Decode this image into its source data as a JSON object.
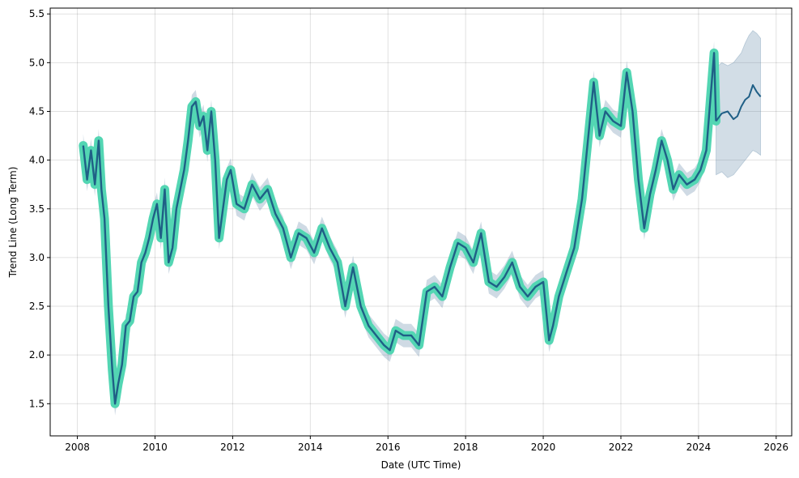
{
  "chart_data": {
    "type": "line",
    "title": "",
    "xlabel": "Date (UTC Time)",
    "ylabel": "Trend Line (Long Term)",
    "xlim": [
      2007.3,
      2026.4
    ],
    "ylim": [
      1.17,
      5.56
    ],
    "x_ticks": [
      2008,
      2010,
      2012,
      2014,
      2016,
      2018,
      2020,
      2022,
      2024,
      2026
    ],
    "y_ticks": [
      1.5,
      2.0,
      2.5,
      3.0,
      3.5,
      4.0,
      4.5,
      5.0,
      5.5
    ],
    "grid": true,
    "colors": {
      "line": "#1f5f86",
      "highlight": "#53d6b3",
      "band": "#5f86a6"
    },
    "series": [
      {
        "role": "trend",
        "x": [
          2008.15,
          2008.25,
          2008.35,
          2008.45,
          2008.55,
          2008.62,
          2008.7,
          2008.8,
          2008.9,
          2008.97,
          2009.05,
          2009.15,
          2009.25,
          2009.35,
          2009.45,
          2009.55,
          2009.65,
          2009.75,
          2009.85,
          2009.95,
          2010.05,
          2010.15,
          2010.25,
          2010.35,
          2010.45,
          2010.55,
          2010.65,
          2010.75,
          2010.85,
          2010.95,
          2011.05,
          2011.15,
          2011.25,
          2011.35,
          2011.45,
          2011.55,
          2011.65,
          2011.75,
          2011.85,
          2011.95,
          2012.1,
          2012.3,
          2012.5,
          2012.7,
          2012.9,
          2013.1,
          2013.3,
          2013.5,
          2013.7,
          2013.9,
          2014.1,
          2014.3,
          2014.5,
          2014.7,
          2014.9,
          2015.1,
          2015.3,
          2015.5,
          2015.7,
          2015.9,
          2016.05,
          2016.2,
          2016.4,
          2016.6,
          2016.8,
          2017.0,
          2017.2,
          2017.4,
          2017.6,
          2017.8,
          2018.0,
          2018.2,
          2018.4,
          2018.6,
          2018.8,
          2019.0,
          2019.2,
          2019.4,
          2019.6,
          2019.8,
          2020.0,
          2020.15,
          2020.25,
          2020.4,
          2020.6,
          2020.8,
          2021.0,
          2021.15,
          2021.3,
          2021.45,
          2021.6,
          2021.8,
          2022.0,
          2022.15,
          2022.3,
          2022.45,
          2022.6,
          2022.75,
          2022.9,
          2023.05,
          2023.2,
          2023.35,
          2023.5,
          2023.7,
          2023.9,
          2024.05,
          2024.2,
          2024.3,
          2024.4,
          2024.45
        ],
        "y": [
          4.15,
          3.8,
          4.1,
          3.75,
          4.2,
          3.7,
          3.4,
          2.5,
          1.85,
          1.5,
          1.7,
          1.9,
          2.3,
          2.35,
          2.6,
          2.65,
          2.95,
          3.05,
          3.2,
          3.4,
          3.55,
          3.2,
          3.7,
          2.95,
          3.1,
          3.5,
          3.7,
          3.9,
          4.2,
          4.55,
          4.6,
          4.35,
          4.45,
          4.1,
          4.5,
          4.0,
          3.2,
          3.5,
          3.8,
          3.9,
          3.55,
          3.5,
          3.75,
          3.6,
          3.7,
          3.45,
          3.3,
          3.0,
          3.25,
          3.2,
          3.05,
          3.3,
          3.1,
          2.95,
          2.5,
          2.9,
          2.5,
          2.3,
          2.2,
          2.1,
          2.05,
          2.25,
          2.2,
          2.2,
          2.1,
          2.65,
          2.7,
          2.6,
          2.9,
          3.15,
          3.1,
          2.95,
          3.25,
          2.75,
          2.7,
          2.8,
          2.95,
          2.7,
          2.6,
          2.7,
          2.75,
          2.15,
          2.3,
          2.6,
          2.85,
          3.1,
          3.6,
          4.2,
          4.8,
          4.25,
          4.5,
          4.4,
          4.35,
          4.9,
          4.5,
          3.8,
          3.3,
          3.65,
          3.9,
          4.2,
          4.0,
          3.7,
          3.85,
          3.75,
          3.8,
          3.9,
          4.1,
          4.6,
          5.1,
          4.4
        ]
      },
      {
        "role": "forecast",
        "x": [
          2024.45,
          2024.6,
          2024.75,
          2024.9,
          2025.0,
          2025.1,
          2025.2,
          2025.3,
          2025.4,
          2025.5,
          2025.6
        ],
        "y": [
          4.4,
          4.48,
          4.5,
          4.42,
          4.45,
          4.55,
          4.62,
          4.65,
          4.77,
          4.7,
          4.65
        ]
      },
      {
        "role": "forecast-band-upper",
        "x": [
          2024.45,
          2024.6,
          2024.75,
          2024.9,
          2025.0,
          2025.1,
          2025.2,
          2025.3,
          2025.4,
          2025.5,
          2025.6
        ],
        "y": [
          4.95,
          5.0,
          4.97,
          5.0,
          5.05,
          5.1,
          5.2,
          5.28,
          5.33,
          5.3,
          5.25
        ]
      },
      {
        "role": "forecast-band-lower",
        "x": [
          2024.45,
          2024.6,
          2024.75,
          2024.9,
          2025.0,
          2025.1,
          2025.2,
          2025.3,
          2025.4,
          2025.5,
          2025.6
        ],
        "y": [
          3.85,
          3.88,
          3.82,
          3.85,
          3.9,
          3.95,
          4.0,
          4.05,
          4.1,
          4.08,
          4.05
        ]
      }
    ],
    "band_halfwidth": 0.12
  }
}
